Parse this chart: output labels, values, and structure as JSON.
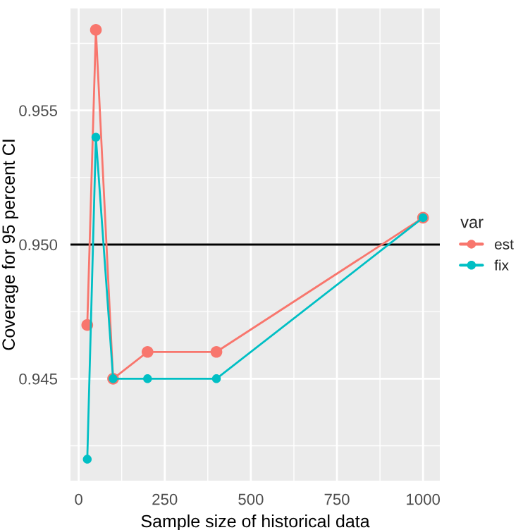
{
  "chart_data": {
    "type": "line",
    "xlabel": "Sample size of historical data",
    "ylabel": "Coverage for 95 percent CI",
    "legend_title": "var",
    "x": [
      25,
      50,
      100,
      200,
      400,
      1000
    ],
    "series": [
      {
        "name": "est",
        "color": "#f8766d",
        "values": [
          0.947,
          0.958,
          0.945,
          0.946,
          0.946,
          0.951
        ]
      },
      {
        "name": "fix",
        "color": "#00bfc4",
        "values": [
          0.942,
          0.954,
          0.945,
          0.945,
          0.945,
          0.951
        ]
      }
    ],
    "xlim": [
      -23.75,
      1048.75
    ],
    "ylim": [
      0.9412,
      0.9588
    ],
    "xticks": [
      0,
      250,
      500,
      750,
      1000
    ],
    "yticks": [
      {
        "value": 0.945,
        "label": "0.945"
      },
      {
        "value": 0.95,
        "label": "0.950"
      },
      {
        "value": 0.955,
        "label": "0.955"
      }
    ],
    "ref_lines": [
      {
        "axis": "y",
        "value": 0.95,
        "color": "#000000"
      }
    ],
    "grid": true,
    "legend": "right",
    "marker": "circle",
    "line_style": "solid"
  }
}
